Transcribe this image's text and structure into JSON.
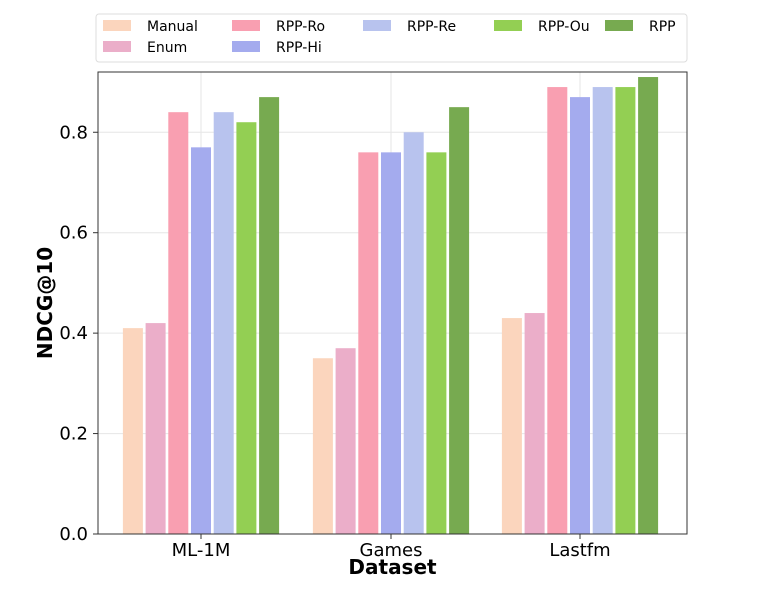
{
  "chart_data": {
    "type": "bar",
    "categories": [
      "ML-1M",
      "Games",
      "Lastfm"
    ],
    "series": [
      {
        "name": "Manual",
        "color": "#fbd5bd",
        "values": [
          0.41,
          0.35,
          0.43
        ]
      },
      {
        "name": "Enum",
        "color": "#ebaec9",
        "values": [
          0.42,
          0.37,
          0.44
        ]
      },
      {
        "name": "RPP-Ro",
        "color": "#f99fb1",
        "values": [
          0.84,
          0.76,
          0.89
        ]
      },
      {
        "name": "RPP-Hi",
        "color": "#a4abee",
        "values": [
          0.77,
          0.76,
          0.87
        ]
      },
      {
        "name": "RPP-Re",
        "color": "#b8c3ee",
        "values": [
          0.84,
          0.8,
          0.89
        ]
      },
      {
        "name": "RPP-Ou",
        "color": "#93cf53",
        "values": [
          0.82,
          0.76,
          0.89
        ]
      },
      {
        "name": "RPP",
        "color": "#77aa50",
        "values": [
          0.87,
          0.85,
          0.91
        ]
      }
    ],
    "xlabel": "Dataset",
    "ylabel": "NDCG@10",
    "ylim": [
      0,
      0.92
    ],
    "yticks": [
      "0.0",
      "0.2",
      "0.4",
      "0.6",
      "0.8"
    ],
    "grid": true,
    "legend_position": "top"
  }
}
